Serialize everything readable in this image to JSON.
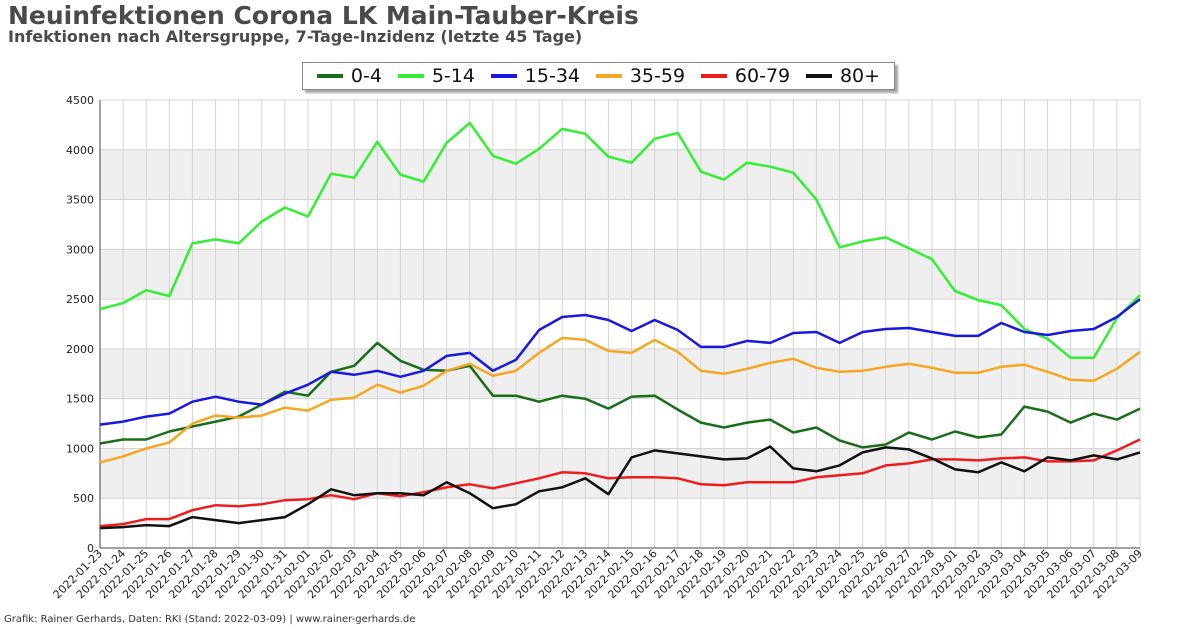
{
  "header": {
    "title": "Neuinfektionen Corona LK Main-Tauber-Kreis",
    "subtitle": "Infektionen nach Altersgruppe, 7-Tage-Inzidenz (letzte 45 Tage)"
  },
  "footer": "Grafik: Rainer Gerhards, Daten: RKI (Stand: 2022-03-09) | www.rainer-gerhards.de",
  "chart_data": {
    "type": "line",
    "title": "Neuinfektionen Corona LK Main-Tauber-Kreis",
    "subtitle": "Infektionen nach Altersgruppe, 7-Tage-Inzidenz (letzte 45 Tage)",
    "ylim": [
      0,
      4500
    ],
    "yticks": [
      0,
      500,
      1000,
      1500,
      2000,
      2500,
      3000,
      3500,
      4000,
      4500
    ],
    "grid": true,
    "legend_position": "top-center",
    "x": [
      "2022-01-23",
      "2022-01-24",
      "2022-01-25",
      "2022-01-26",
      "2022-01-27",
      "2022-01-28",
      "2022-01-29",
      "2022-01-30",
      "2022-01-31",
      "2022-02-01",
      "2022-02-02",
      "2022-02-03",
      "2022-02-04",
      "2022-02-05",
      "2022-02-06",
      "2022-02-07",
      "2022-02-08",
      "2022-02-09",
      "2022-02-10",
      "2022-02-11",
      "2022-02-12",
      "2022-02-13",
      "2022-02-14",
      "2022-02-15",
      "2022-02-16",
      "2022-02-17",
      "2022-02-18",
      "2022-02-19",
      "2022-02-20",
      "2022-02-21",
      "2022-02-22",
      "2022-02-23",
      "2022-02-24",
      "2022-02-25",
      "2022-02-26",
      "2022-02-27",
      "2022-02-28",
      "2022-03-01",
      "2022-03-02",
      "2022-03-03",
      "2022-03-04",
      "2022-03-05",
      "2022-03-06",
      "2022-03-07",
      "2022-03-08",
      "2022-03-09"
    ],
    "series": [
      {
        "name": "0-4",
        "color": "#1a6e1a",
        "values": [
          1050,
          1090,
          1090,
          1170,
          1220,
          1270,
          1320,
          1440,
          1570,
          1530,
          1770,
          1830,
          2060,
          1880,
          1790,
          1780,
          1830,
          1530,
          1530,
          1470,
          1530,
          1500,
          1400,
          1520,
          1530,
          1390,
          1260,
          1210,
          1260,
          1290,
          1160,
          1210,
          1080,
          1010,
          1040,
          1160,
          1090,
          1170,
          1110,
          1140,
          1420,
          1370,
          1260,
          1350,
          1290,
          1400
        ]
      },
      {
        "name": "5-14",
        "color": "#33ee33",
        "values": [
          2400,
          2460,
          2590,
          2530,
          3060,
          3100,
          3060,
          3280,
          3420,
          3330,
          3760,
          3720,
          4080,
          3750,
          3680,
          4070,
          4270,
          3940,
          3860,
          4010,
          4210,
          4160,
          3930,
          3870,
          4110,
          4170,
          3780,
          3700,
          3870,
          3830,
          3770,
          3500,
          3020,
          3080,
          3120,
          3010,
          2900,
          2580,
          2490,
          2440,
          2200,
          2100,
          1910,
          1910,
          2310,
          2540
        ]
      },
      {
        "name": "15-34",
        "color": "#1818e0",
        "values": [
          1240,
          1270,
          1320,
          1350,
          1470,
          1520,
          1470,
          1440,
          1550,
          1640,
          1770,
          1740,
          1780,
          1720,
          1780,
          1930,
          1960,
          1780,
          1890,
          2190,
          2320,
          2340,
          2290,
          2180,
          2290,
          2190,
          2020,
          2020,
          2080,
          2060,
          2160,
          2170,
          2060,
          2170,
          2200,
          2210,
          2170,
          2130,
          2130,
          2260,
          2170,
          2140,
          2180,
          2200,
          2320,
          2500
        ]
      },
      {
        "name": "35-59",
        "color": "#f5a623",
        "values": [
          860,
          920,
          1000,
          1060,
          1250,
          1330,
          1310,
          1330,
          1410,
          1380,
          1490,
          1510,
          1640,
          1560,
          1630,
          1780,
          1850,
          1730,
          1780,
          1960,
          2110,
          2090,
          1980,
          1960,
          2090,
          1970,
          1780,
          1750,
          1800,
          1860,
          1900,
          1810,
          1770,
          1780,
          1820,
          1850,
          1810,
          1760,
          1760,
          1820,
          1840,
          1770,
          1690,
          1680,
          1800,
          1970
        ]
      },
      {
        "name": "60-79",
        "color": "#ee1c1c",
        "values": [
          220,
          240,
          290,
          290,
          380,
          430,
          420,
          440,
          480,
          490,
          530,
          490,
          550,
          520,
          560,
          610,
          640,
          600,
          650,
          700,
          760,
          750,
          700,
          710,
          710,
          700,
          640,
          630,
          660,
          660,
          660,
          710,
          730,
          750,
          830,
          850,
          890,
          890,
          880,
          900,
          910,
          870,
          870,
          880,
          980,
          1090
        ]
      },
      {
        "name": "80+",
        "color": "#111111",
        "values": [
          200,
          210,
          230,
          220,
          310,
          280,
          250,
          280,
          310,
          440,
          590,
          530,
          550,
          550,
          530,
          660,
          550,
          400,
          440,
          570,
          610,
          700,
          540,
          910,
          980,
          950,
          920,
          890,
          900,
          1020,
          800,
          770,
          830,
          960,
          1010,
          990,
          900,
          790,
          760,
          860,
          770,
          910,
          880,
          930,
          890,
          960
        ]
      }
    ]
  }
}
